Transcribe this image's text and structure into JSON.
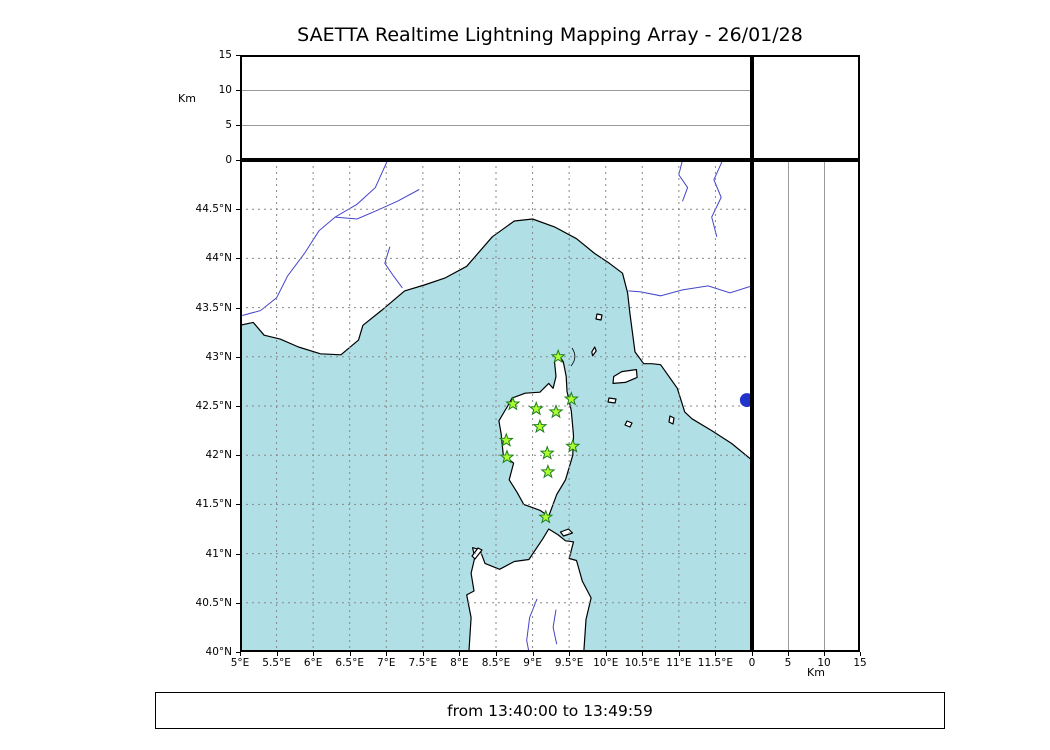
{
  "title": "SAETTA Realtime Lightning Mapping Array - 26/01/28",
  "footer": {
    "text": "from 13:40:00 to 13:49:59"
  },
  "altitude_axis": {
    "label": "Km",
    "ticks": [
      0,
      5,
      10,
      15
    ],
    "max": 15,
    "gridlines": [
      5,
      10
    ]
  },
  "latitude_axis": {
    "min": 40,
    "max": 45,
    "ticks": [
      {
        "value": 40,
        "label": "40°N"
      },
      {
        "value": 40.5,
        "label": "40.5°N"
      },
      {
        "value": 41,
        "label": "41°N"
      },
      {
        "value": 41.5,
        "label": "41.5°N"
      },
      {
        "value": 42,
        "label": "42°N"
      },
      {
        "value": 42.5,
        "label": "42.5°N"
      },
      {
        "value": 43,
        "label": "43°N"
      },
      {
        "value": 43.5,
        "label": "43.5°N"
      },
      {
        "value": 44,
        "label": "44°N"
      },
      {
        "value": 44.5,
        "label": "44.5°N"
      }
    ]
  },
  "longitude_axis": {
    "min": 5,
    "max": 12,
    "ticks": [
      {
        "value": 5,
        "label": "5°E"
      },
      {
        "value": 5.5,
        "label": "5.5°E"
      },
      {
        "value": 6,
        "label": "6°E"
      },
      {
        "value": 6.5,
        "label": "6.5°E"
      },
      {
        "value": 7,
        "label": "7°E"
      },
      {
        "value": 7.5,
        "label": "7.5°E"
      },
      {
        "value": 8,
        "label": "8°E"
      },
      {
        "value": 8.5,
        "label": "8.5°E"
      },
      {
        "value": 9,
        "label": "9°E"
      },
      {
        "value": 9.5,
        "label": "9.5°E"
      },
      {
        "value": 10,
        "label": "10°E"
      },
      {
        "value": 10.5,
        "label": "10.5°E"
      },
      {
        "value": 11,
        "label": "11°E"
      },
      {
        "value": 11.5,
        "label": "11.5°E"
      }
    ]
  },
  "map": {
    "sea_color": "#b0e0e6",
    "land_color": "#ffffff",
    "coast_color": "#000000",
    "river_color": "#4444cc",
    "grid_color": "#888888",
    "station_style": {
      "fill": "#adff2f",
      "stroke": "#1e7d1e"
    },
    "stations": [
      {
        "lon": 9.35,
        "lat": 43.0
      },
      {
        "lon": 8.73,
        "lat": 42.52
      },
      {
        "lon": 9.05,
        "lat": 42.47
      },
      {
        "lon": 9.32,
        "lat": 42.44
      },
      {
        "lon": 9.53,
        "lat": 42.57
      },
      {
        "lon": 9.1,
        "lat": 42.29
      },
      {
        "lon": 8.64,
        "lat": 42.15
      },
      {
        "lon": 9.55,
        "lat": 42.09
      },
      {
        "lon": 8.65,
        "lat": 41.98
      },
      {
        "lon": 9.2,
        "lat": 42.02
      },
      {
        "lon": 9.21,
        "lat": 41.83
      },
      {
        "lon": 9.18,
        "lat": 41.37
      }
    ],
    "event_dot": {
      "lon": 11.93,
      "lat": 42.56,
      "radius": 7,
      "color": "#2233cc"
    }
  }
}
